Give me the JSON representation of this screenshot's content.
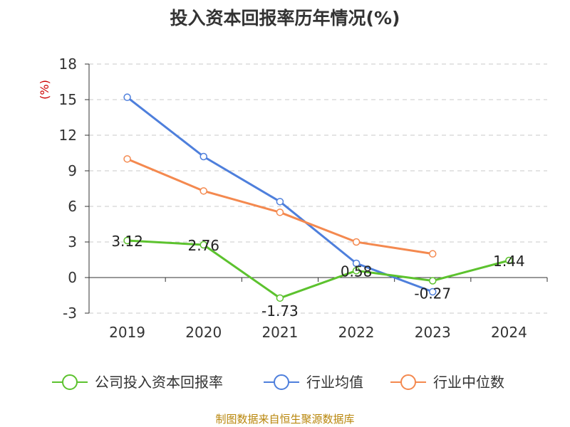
{
  "chart_data": {
    "type": "line",
    "title": "投入资本回报率历年情况(%)",
    "ylabel": "(%)",
    "categories": [
      "2019",
      "2020",
      "2021",
      "2022",
      "2023",
      "2024"
    ],
    "ylim": [
      -3,
      18
    ],
    "yticks": [
      18,
      15,
      12,
      9,
      6,
      3,
      0,
      -3
    ],
    "grid": true,
    "legend_position": "bottom",
    "series": [
      {
        "name": "公司投入资本回报率",
        "color": "#5cc22e",
        "values": [
          3.12,
          2.76,
          -1.73,
          0.58,
          -0.27,
          1.44
        ],
        "labels": [
          "3.12",
          "2.76",
          "-1.73",
          "0.58",
          "-0.27",
          "1.44"
        ]
      },
      {
        "name": "行业均值",
        "color": "#4e7fdc",
        "values": [
          15.2,
          10.2,
          6.4,
          1.2,
          -1.2,
          null
        ]
      },
      {
        "name": "行业中位数",
        "color": "#f4894f",
        "values": [
          10.0,
          7.3,
          5.5,
          3.0,
          2.0,
          null
        ]
      }
    ]
  },
  "source": "制图数据来自恒生聚源数据库"
}
